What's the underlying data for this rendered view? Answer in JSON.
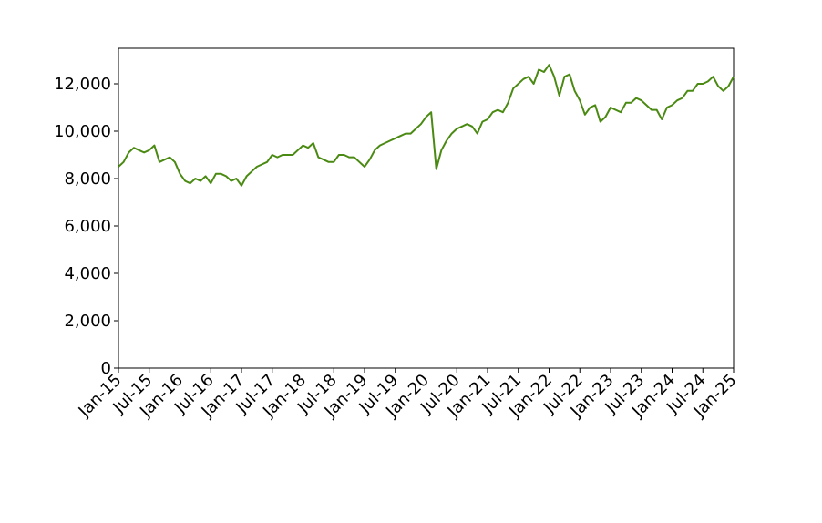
{
  "chart_data": {
    "type": "line",
    "x": [
      "2015-01",
      "2015-02",
      "2015-03",
      "2015-04",
      "2015-05",
      "2015-06",
      "2015-07",
      "2015-08",
      "2015-09",
      "2015-10",
      "2015-11",
      "2015-12",
      "2016-01",
      "2016-02",
      "2016-03",
      "2016-04",
      "2016-05",
      "2016-06",
      "2016-07",
      "2016-08",
      "2016-09",
      "2016-10",
      "2016-11",
      "2016-12",
      "2017-01",
      "2017-02",
      "2017-03",
      "2017-04",
      "2017-05",
      "2017-06",
      "2017-07",
      "2017-08",
      "2017-09",
      "2017-10",
      "2017-11",
      "2017-12",
      "2018-01",
      "2018-02",
      "2018-03",
      "2018-04",
      "2018-05",
      "2018-06",
      "2018-07",
      "2018-08",
      "2018-09",
      "2018-10",
      "2018-11",
      "2018-12",
      "2019-01",
      "2019-02",
      "2019-03",
      "2019-04",
      "2019-05",
      "2019-06",
      "2019-07",
      "2019-08",
      "2019-09",
      "2019-10",
      "2019-11",
      "2019-12",
      "2020-01",
      "2020-02",
      "2020-03",
      "2020-04",
      "2020-05",
      "2020-06",
      "2020-07",
      "2020-08",
      "2020-09",
      "2020-10",
      "2020-11",
      "2020-12",
      "2021-01",
      "2021-02",
      "2021-03",
      "2021-04",
      "2021-05",
      "2021-06",
      "2021-07",
      "2021-08",
      "2021-09",
      "2021-10",
      "2021-11",
      "2021-12",
      "2022-01",
      "2022-02",
      "2022-03",
      "2022-04",
      "2022-05",
      "2022-06",
      "2022-07",
      "2022-08",
      "2022-09",
      "2022-10",
      "2022-11",
      "2022-12",
      "2023-01",
      "2023-02",
      "2023-03",
      "2023-04",
      "2023-05",
      "2023-06",
      "2023-07",
      "2023-08",
      "2023-09",
      "2023-10",
      "2023-11",
      "2023-12",
      "2024-01",
      "2024-02",
      "2024-03",
      "2024-04",
      "2024-05",
      "2024-06",
      "2024-07",
      "2024-08",
      "2024-09",
      "2024-10",
      "2024-11",
      "2024-12",
      "2025-01"
    ],
    "series": [
      {
        "color": "#4a8a12",
        "values": [
          8500,
          8700,
          9100,
          9300,
          9200,
          9100,
          9200,
          9400,
          8700,
          8800,
          8900,
          8700,
          8200,
          7900,
          7800,
          8000,
          7900,
          8100,
          7800,
          8200,
          8200,
          8100,
          7900,
          8000,
          7700,
          8100,
          8300,
          8500,
          8600,
          8700,
          9000,
          8900,
          9000,
          9000,
          9000,
          9200,
          9400,
          9300,
          9500,
          8900,
          8800,
          8700,
          8700,
          9000,
          9000,
          8900,
          8900,
          8700,
          8500,
          8800,
          9200,
          9400,
          9500,
          9600,
          9700,
          9800,
          9900,
          9900,
          10100,
          10300,
          10600,
          10800,
          8400,
          9200,
          9600,
          9900,
          10100,
          10200,
          10300,
          10200,
          9900,
          10400,
          10500,
          10800,
          10900,
          10800,
          11200,
          11800,
          12000,
          12200,
          12300,
          12000,
          12600,
          12500,
          12800,
          12300,
          11500,
          12300,
          12400,
          11700,
          11300,
          10700,
          11000,
          11100,
          10400,
          10600,
          11000,
          10900,
          10800,
          11200,
          11200,
          11400,
          11300,
          11100,
          10900,
          10900,
          10500,
          11000,
          11100,
          11300,
          11400,
          11700,
          11700,
          12000,
          12000,
          12100,
          12300,
          11900,
          11700,
          11900,
          12300
        ]
      }
    ],
    "xlim": [
      "2015-01",
      "2025-01"
    ],
    "xticks": [
      {
        "value": "2015-01",
        "label": "Jan-15"
      },
      {
        "value": "2015-07",
        "label": "Jul-15"
      },
      {
        "value": "2016-01",
        "label": "Jan-16"
      },
      {
        "value": "2016-07",
        "label": "Jul-16"
      },
      {
        "value": "2017-01",
        "label": "Jan-17"
      },
      {
        "value": "2017-07",
        "label": "Jul-17"
      },
      {
        "value": "2018-01",
        "label": "Jan-18"
      },
      {
        "value": "2018-07",
        "label": "Jul-18"
      },
      {
        "value": "2019-01",
        "label": "Jan-19"
      },
      {
        "value": "2019-07",
        "label": "Jul-19"
      },
      {
        "value": "2020-01",
        "label": "Jan-20"
      },
      {
        "value": "2020-07",
        "label": "Jul-20"
      },
      {
        "value": "2021-01",
        "label": "Jan-21"
      },
      {
        "value": "2021-07",
        "label": "Jul-21"
      },
      {
        "value": "2022-01",
        "label": "Jan-22"
      },
      {
        "value": "2022-07",
        "label": "Jul-22"
      },
      {
        "value": "2023-01",
        "label": "Jan-23"
      },
      {
        "value": "2023-07",
        "label": "Jul-23"
      },
      {
        "value": "2024-01",
        "label": "Jan-24"
      },
      {
        "value": "2024-07",
        "label": "Jul-24"
      },
      {
        "value": "2025-01",
        "label": "Jan-25"
      }
    ],
    "ylim": [
      0,
      13500
    ],
    "yticks": [
      0,
      {
        "value": 2000,
        "label": "2,000"
      },
      {
        "value": 4000,
        "label": "4,000"
      },
      {
        "value": 6000,
        "label": "6,000"
      },
      {
        "value": 8000,
        "label": "8,000"
      },
      {
        "value": 10000,
        "label": "10,000"
      },
      {
        "value": 12000,
        "label": "12,000"
      }
    ],
    "grid": false
  }
}
